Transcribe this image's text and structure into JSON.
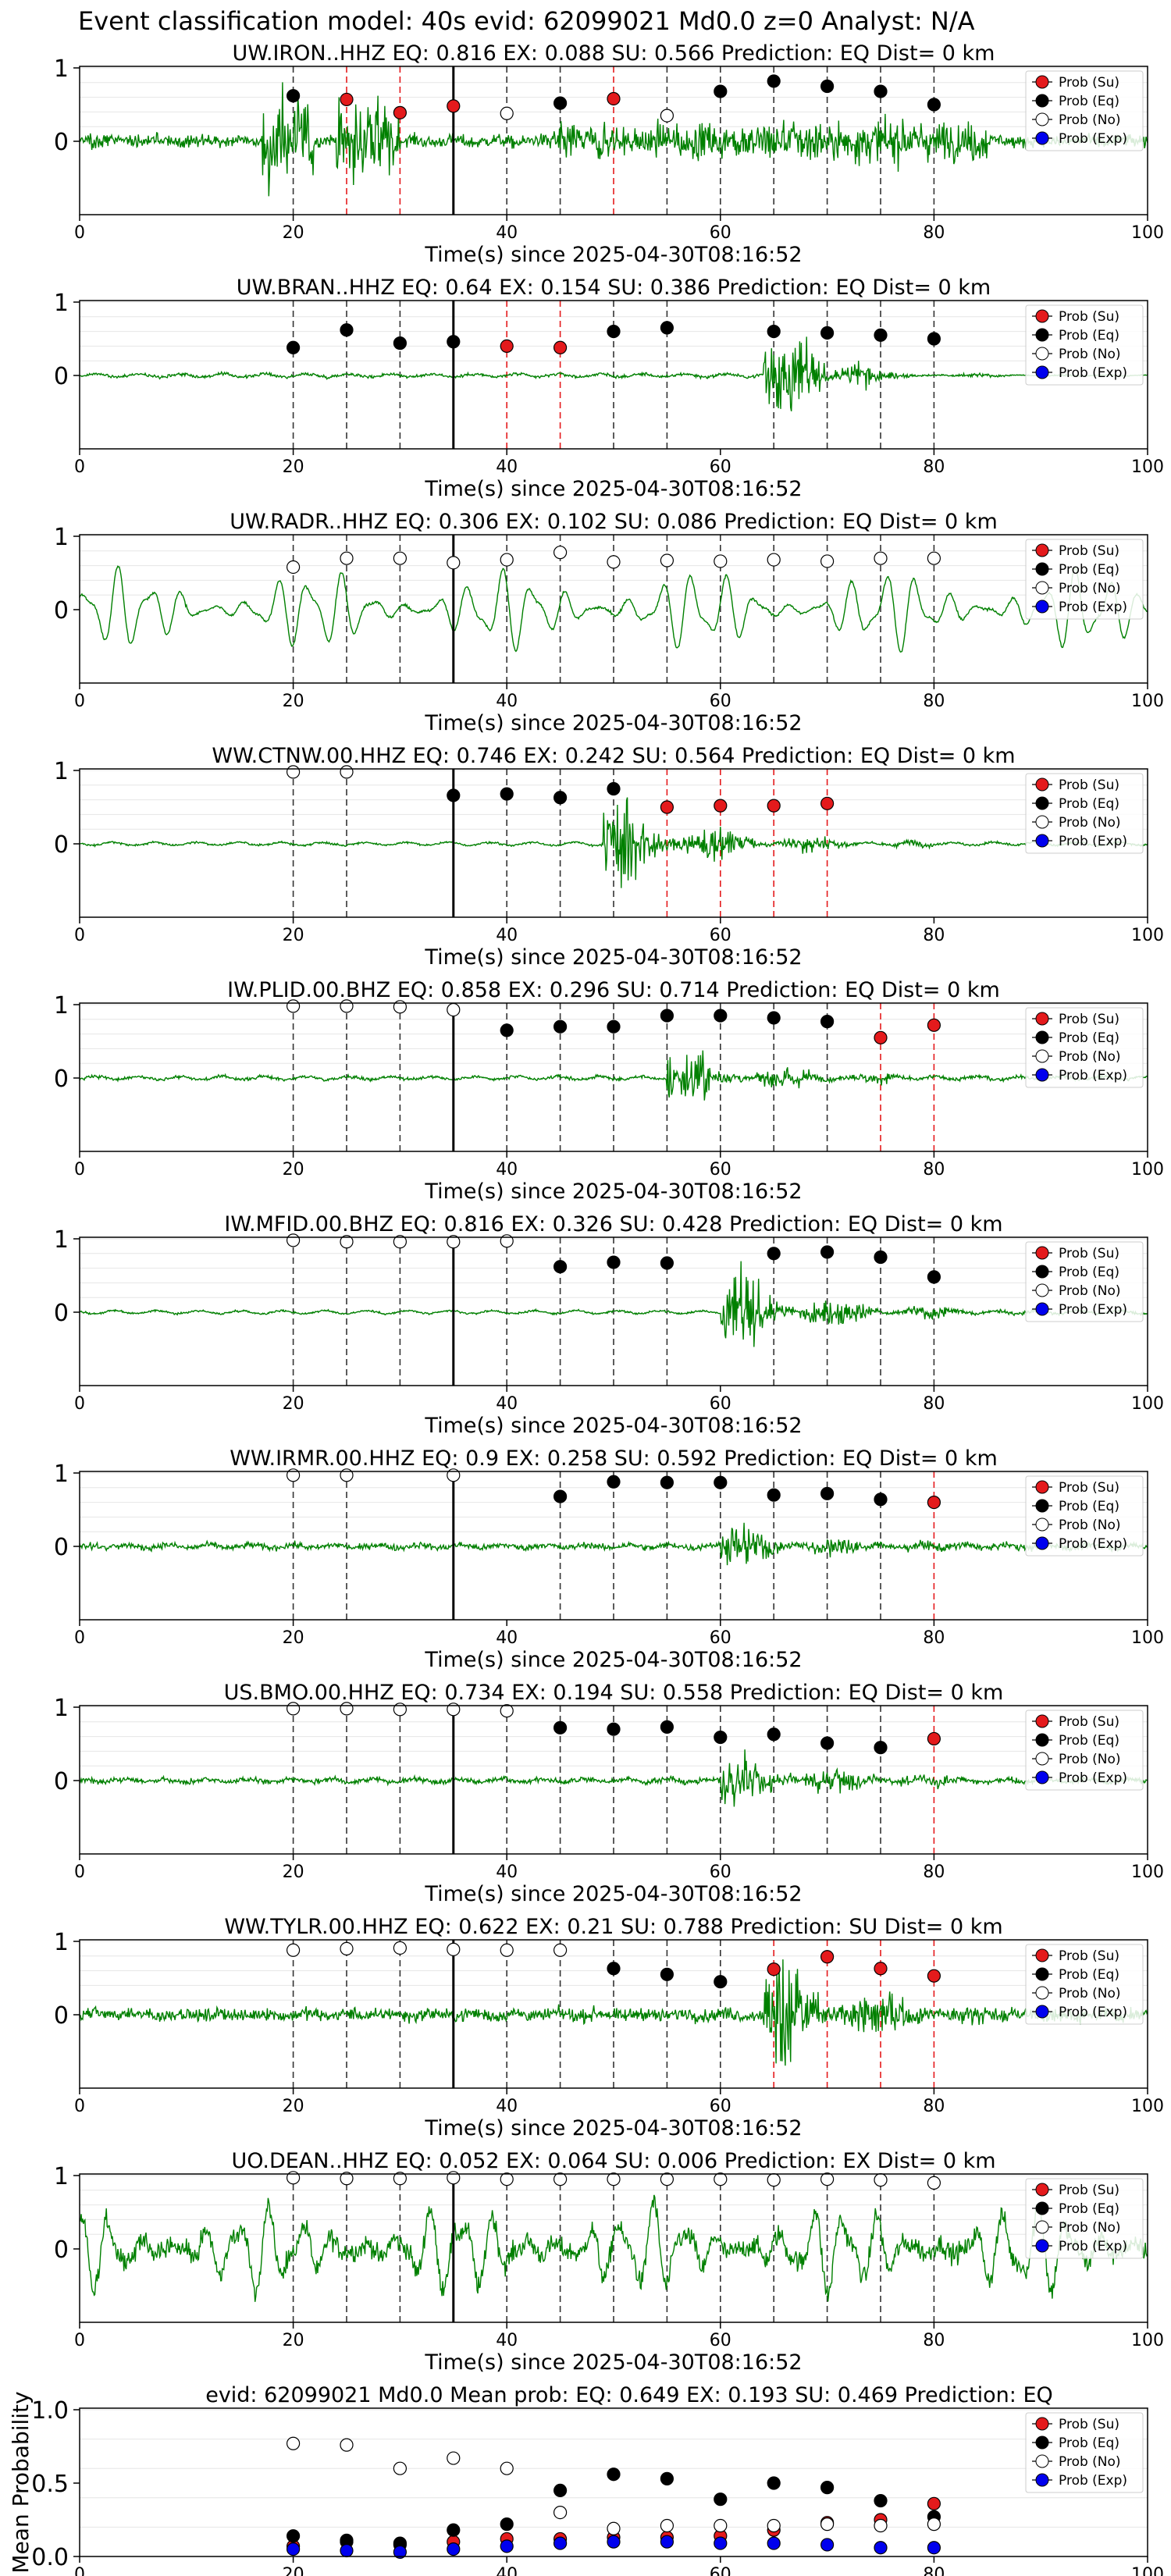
{
  "figure": {
    "title": "Event classification model: 40s evid: 62099021 Md0.0 z=0 Analyst: N/A",
    "xlabel": "Time(s) since 2025-04-30T08:16:52",
    "xlim": [
      0,
      100
    ],
    "xticks": [
      "0",
      "20",
      "40",
      "60",
      "80",
      "100"
    ],
    "yticks": [
      "0",
      "1"
    ],
    "legend": [
      "Prob (Su)",
      "Prob (Eq)",
      "Prob (No)",
      "Prob (Exp)"
    ],
    "legend_position": "top-right",
    "colors": {
      "su": "#e41a1c",
      "eq": "#000000",
      "no": "#ffffff",
      "exp": "#0000ee",
      "waveform": "#008000"
    }
  },
  "chart_data": [
    {
      "type": "scatter",
      "station": "UW.IRON..HHZ",
      "title": "UW.IRON..HHZ   EQ: 0.816  EX: 0.088  SU: 0.566   Prediction: EQ    Dist= 0 km",
      "pick_time": 35,
      "waveform": {
        "noise": 0.12,
        "onset": 10,
        "amp": 0.45,
        "style": "noisy"
      },
      "windows": [
        {
          "t": 20,
          "class": "eq",
          "p": 0.62
        },
        {
          "t": 25,
          "class": "su",
          "p": 0.57
        },
        {
          "t": 30,
          "class": "su",
          "p": 0.39
        },
        {
          "t": 35,
          "class": "su",
          "p": 0.48
        },
        {
          "t": 40,
          "class": "no",
          "p": 0.38
        },
        {
          "t": 45,
          "class": "eq",
          "p": 0.52
        },
        {
          "t": 50,
          "class": "su",
          "p": 0.58
        },
        {
          "t": 55,
          "class": "no",
          "p": 0.35
        },
        {
          "t": 60,
          "class": "eq",
          "p": 0.68
        },
        {
          "t": 65,
          "class": "eq",
          "p": 0.82
        },
        {
          "t": 70,
          "class": "eq",
          "p": 0.75
        },
        {
          "t": 75,
          "class": "eq",
          "p": 0.68
        },
        {
          "t": 80,
          "class": "eq",
          "p": 0.5
        }
      ]
    },
    {
      "type": "scatter",
      "station": "UW.BRAN..HHZ",
      "title": "UW.BRAN..HHZ   EQ: 0.64  EX: 0.154  SU: 0.386   Prediction: EQ    Dist= 0 km",
      "pick_time": 35,
      "waveform": {
        "noise": 0.03,
        "onset": 64,
        "amp": 0.9,
        "style": "burst"
      },
      "windows": [
        {
          "t": 20,
          "class": "eq",
          "p": 0.38
        },
        {
          "t": 25,
          "class": "eq",
          "p": 0.62
        },
        {
          "t": 30,
          "class": "eq",
          "p": 0.44
        },
        {
          "t": 35,
          "class": "eq",
          "p": 0.46
        },
        {
          "t": 40,
          "class": "su",
          "p": 0.4
        },
        {
          "t": 45,
          "class": "su",
          "p": 0.38
        },
        {
          "t": 50,
          "class": "eq",
          "p": 0.6
        },
        {
          "t": 55,
          "class": "eq",
          "p": 0.65
        },
        {
          "t": 65,
          "class": "eq",
          "p": 0.6
        },
        {
          "t": 70,
          "class": "eq",
          "p": 0.58
        },
        {
          "t": 75,
          "class": "eq",
          "p": 0.55
        },
        {
          "t": 80,
          "class": "eq",
          "p": 0.5
        }
      ]
    },
    {
      "type": "scatter",
      "station": "UW.RADR..HHZ",
      "title": "UW.RADR..HHZ   EQ: 0.306  EX: 0.102  SU: 0.086   Prediction: EQ    Dist= 0 km",
      "pick_time": 35,
      "waveform": {
        "noise": 0.5,
        "onset": 0,
        "amp": 0.5,
        "style": "microseism"
      },
      "windows": [
        {
          "t": 20,
          "class": "no",
          "p": 0.58
        },
        {
          "t": 25,
          "class": "no",
          "p": 0.7
        },
        {
          "t": 30,
          "class": "no",
          "p": 0.7
        },
        {
          "t": 35,
          "class": "no",
          "p": 0.64
        },
        {
          "t": 40,
          "class": "no",
          "p": 0.68
        },
        {
          "t": 45,
          "class": "no",
          "p": 0.78
        },
        {
          "t": 50,
          "class": "no",
          "p": 0.65
        },
        {
          "t": 55,
          "class": "no",
          "p": 0.67
        },
        {
          "t": 60,
          "class": "no",
          "p": 0.66
        },
        {
          "t": 65,
          "class": "no",
          "p": 0.68
        },
        {
          "t": 70,
          "class": "no",
          "p": 0.66
        },
        {
          "t": 75,
          "class": "no",
          "p": 0.7
        },
        {
          "t": 80,
          "class": "no",
          "p": 0.7
        }
      ]
    },
    {
      "type": "scatter",
      "station": "WW.CTNW.00.HHZ",
      "title": "WW.CTNW.00.HHZ   EQ: 0.746  EX: 0.242  SU: 0.564   Prediction: EQ    Dist= 0 km",
      "pick_time": 35,
      "waveform": {
        "noise": 0.02,
        "onset": 49,
        "amp": 0.85,
        "style": "event"
      },
      "windows": [
        {
          "t": 20,
          "class": "no",
          "p": 0.98
        },
        {
          "t": 25,
          "class": "no",
          "p": 0.98
        },
        {
          "t": 35,
          "class": "eq",
          "p": 0.66
        },
        {
          "t": 40,
          "class": "eq",
          "p": 0.68
        },
        {
          "t": 45,
          "class": "eq",
          "p": 0.63
        },
        {
          "t": 50,
          "class": "eq",
          "p": 0.75
        },
        {
          "t": 55,
          "class": "su",
          "p": 0.5
        },
        {
          "t": 60,
          "class": "su",
          "p": 0.52
        },
        {
          "t": 65,
          "class": "su",
          "p": 0.52
        },
        {
          "t": 70,
          "class": "su",
          "p": 0.55
        }
      ]
    },
    {
      "type": "scatter",
      "station": "IW.PLID.00.BHZ",
      "title": "IW.PLID.00.BHZ   EQ: 0.858  EX: 0.296  SU: 0.714   Prediction: EQ    Dist= 0 km",
      "pick_time": 35,
      "waveform": {
        "noise": 0.03,
        "onset": 55,
        "amp": 0.6,
        "style": "event"
      },
      "windows": [
        {
          "t": 20,
          "class": "no",
          "p": 0.98
        },
        {
          "t": 25,
          "class": "no",
          "p": 0.98
        },
        {
          "t": 30,
          "class": "no",
          "p": 0.97
        },
        {
          "t": 35,
          "class": "no",
          "p": 0.93
        },
        {
          "t": 40,
          "class": "eq",
          "p": 0.65
        },
        {
          "t": 45,
          "class": "eq",
          "p": 0.7
        },
        {
          "t": 50,
          "class": "eq",
          "p": 0.7
        },
        {
          "t": 55,
          "class": "eq",
          "p": 0.85
        },
        {
          "t": 60,
          "class": "eq",
          "p": 0.85
        },
        {
          "t": 65,
          "class": "eq",
          "p": 0.82
        },
        {
          "t": 70,
          "class": "eq",
          "p": 0.77
        },
        {
          "t": 75,
          "class": "su",
          "p": 0.55
        },
        {
          "t": 80,
          "class": "su",
          "p": 0.72
        }
      ]
    },
    {
      "type": "scatter",
      "station": "IW.MFID.00.BHZ",
      "title": "IW.MFID.00.BHZ   EQ: 0.816  EX: 0.326  SU: 0.428   Prediction: EQ    Dist= 0 km",
      "pick_time": 35,
      "waveform": {
        "noise": 0.02,
        "onset": 60,
        "amp": 0.7,
        "style": "event"
      },
      "windows": [
        {
          "t": 20,
          "class": "no",
          "p": 0.98
        },
        {
          "t": 25,
          "class": "no",
          "p": 0.96
        },
        {
          "t": 30,
          "class": "no",
          "p": 0.96
        },
        {
          "t": 35,
          "class": "no",
          "p": 0.96
        },
        {
          "t": 40,
          "class": "no",
          "p": 0.97
        },
        {
          "t": 45,
          "class": "eq",
          "p": 0.62
        },
        {
          "t": 50,
          "class": "eq",
          "p": 0.68
        },
        {
          "t": 55,
          "class": "eq",
          "p": 0.67
        },
        {
          "t": 65,
          "class": "eq",
          "p": 0.8
        },
        {
          "t": 70,
          "class": "eq",
          "p": 0.82
        },
        {
          "t": 75,
          "class": "eq",
          "p": 0.75
        },
        {
          "t": 80,
          "class": "eq",
          "p": 0.48
        }
      ]
    },
    {
      "type": "scatter",
      "station": "WW.IRMR.00.HHZ",
      "title": "WW.IRMR.00.HHZ   EQ: 0.9  EX: 0.258  SU: 0.592   Prediction: EQ    Dist= 0 km",
      "pick_time": 35,
      "waveform": {
        "noise": 0.06,
        "onset": 60,
        "amp": 0.45,
        "style": "event"
      },
      "windows": [
        {
          "t": 20,
          "class": "no",
          "p": 0.97
        },
        {
          "t": 25,
          "class": "no",
          "p": 0.97
        },
        {
          "t": 35,
          "class": "no",
          "p": 0.97
        },
        {
          "t": 45,
          "class": "eq",
          "p": 0.68
        },
        {
          "t": 50,
          "class": "eq",
          "p": 0.88
        },
        {
          "t": 55,
          "class": "eq",
          "p": 0.87
        },
        {
          "t": 60,
          "class": "eq",
          "p": 0.87
        },
        {
          "t": 65,
          "class": "eq",
          "p": 0.7
        },
        {
          "t": 70,
          "class": "eq",
          "p": 0.72
        },
        {
          "t": 75,
          "class": "eq",
          "p": 0.64
        },
        {
          "t": 80,
          "class": "su",
          "p": 0.6
        }
      ]
    },
    {
      "type": "scatter",
      "station": "US.BMO.00.HHZ",
      "title": "US.BMO.00.HHZ   EQ: 0.734  EX: 0.194  SU: 0.558   Prediction: EQ    Dist= 0 km",
      "pick_time": 35,
      "waveform": {
        "noise": 0.05,
        "onset": 60,
        "amp": 0.6,
        "style": "event"
      },
      "windows": [
        {
          "t": 20,
          "class": "no",
          "p": 0.98
        },
        {
          "t": 25,
          "class": "no",
          "p": 0.98
        },
        {
          "t": 30,
          "class": "no",
          "p": 0.97
        },
        {
          "t": 35,
          "class": "no",
          "p": 0.97
        },
        {
          "t": 40,
          "class": "no",
          "p": 0.95
        },
        {
          "t": 45,
          "class": "eq",
          "p": 0.72
        },
        {
          "t": 50,
          "class": "eq",
          "p": 0.7
        },
        {
          "t": 55,
          "class": "eq",
          "p": 0.73
        },
        {
          "t": 60,
          "class": "eq",
          "p": 0.59
        },
        {
          "t": 65,
          "class": "eq",
          "p": 0.63
        },
        {
          "t": 70,
          "class": "eq",
          "p": 0.51
        },
        {
          "t": 75,
          "class": "eq",
          "p": 0.45
        },
        {
          "t": 80,
          "class": "su",
          "p": 0.57
        }
      ]
    },
    {
      "type": "scatter",
      "station": "WW.TYLR.00.HHZ",
      "title": "WW.TYLR.00.HHZ   EQ: 0.622  EX: 0.21  SU: 0.788   Prediction: SU    Dist= 0 km",
      "pick_time": 35,
      "waveform": {
        "noise": 0.12,
        "onset": 64,
        "amp": 1.1,
        "style": "event"
      },
      "windows": [
        {
          "t": 20,
          "class": "no",
          "p": 0.88
        },
        {
          "t": 25,
          "class": "no",
          "p": 0.9
        },
        {
          "t": 30,
          "class": "no",
          "p": 0.91
        },
        {
          "t": 35,
          "class": "no",
          "p": 0.89
        },
        {
          "t": 40,
          "class": "no",
          "p": 0.88
        },
        {
          "t": 45,
          "class": "no",
          "p": 0.88
        },
        {
          "t": 50,
          "class": "eq",
          "p": 0.63
        },
        {
          "t": 55,
          "class": "eq",
          "p": 0.55
        },
        {
          "t": 60,
          "class": "eq",
          "p": 0.45
        },
        {
          "t": 65,
          "class": "su",
          "p": 0.62
        },
        {
          "t": 70,
          "class": "su",
          "p": 0.79
        },
        {
          "t": 75,
          "class": "su",
          "p": 0.63
        },
        {
          "t": 80,
          "class": "su",
          "p": 0.53
        }
      ]
    },
    {
      "type": "scatter",
      "station": "UO.DEAN..HHZ",
      "title": "UO.DEAN..HHZ   EQ: 0.052  EX: 0.064  SU: 0.006   Prediction: EX    Dist= 0 km",
      "pick_time": 35,
      "waveform": {
        "noise": 0.55,
        "onset": 0,
        "amp": 0.55,
        "style": "microseism_noisy"
      },
      "windows": [
        {
          "t": 20,
          "class": "no",
          "p": 0.97
        },
        {
          "t": 25,
          "class": "no",
          "p": 0.96
        },
        {
          "t": 30,
          "class": "no",
          "p": 0.96
        },
        {
          "t": 35,
          "class": "no",
          "p": 0.97
        },
        {
          "t": 40,
          "class": "no",
          "p": 0.95
        },
        {
          "t": 45,
          "class": "no",
          "p": 0.95
        },
        {
          "t": 50,
          "class": "no",
          "p": 0.95
        },
        {
          "t": 55,
          "class": "no",
          "p": 0.95
        },
        {
          "t": 60,
          "class": "no",
          "p": 0.95
        },
        {
          "t": 65,
          "class": "no",
          "p": 0.94
        },
        {
          "t": 70,
          "class": "no",
          "p": 0.95
        },
        {
          "t": 75,
          "class": "no",
          "p": 0.94
        },
        {
          "t": 80,
          "class": "no",
          "p": 0.9
        }
      ]
    },
    {
      "type": "scatter",
      "station": "mean",
      "title": "evid: 62099021  Md0.0   Mean prob:   EQ: 0.649  EX: 0.193  SU: 0.469   Prediction: EQ",
      "ylabel": "Mean Probability",
      "ylim": [
        0,
        1
      ],
      "yticks": [
        "0.0",
        "0.5",
        "1.0"
      ],
      "x": [
        20,
        25,
        30,
        35,
        40,
        45,
        50,
        55,
        60,
        65,
        70,
        75,
        80
      ],
      "series": [
        {
          "name": "Prob (Su)",
          "class": "su",
          "values": [
            0.07,
            0.1,
            0.08,
            0.1,
            0.12,
            0.12,
            0.13,
            0.13,
            0.14,
            0.18,
            0.23,
            0.25,
            0.36
          ]
        },
        {
          "name": "Prob (Eq)",
          "class": "eq",
          "values": [
            0.14,
            0.11,
            0.09,
            0.18,
            0.22,
            0.45,
            0.56,
            0.53,
            0.39,
            0.5,
            0.47,
            0.38,
            0.27
          ]
        },
        {
          "name": "Prob (No)",
          "class": "no",
          "values": [
            0.77,
            0.76,
            0.6,
            0.67,
            0.6,
            0.3,
            0.19,
            0.21,
            0.21,
            0.21,
            0.22,
            0.21,
            0.22
          ]
        },
        {
          "name": "Prob (Exp)",
          "class": "exp",
          "values": [
            0.05,
            0.04,
            0.03,
            0.05,
            0.07,
            0.09,
            0.1,
            0.1,
            0.09,
            0.09,
            0.08,
            0.06,
            0.06
          ]
        }
      ]
    }
  ]
}
